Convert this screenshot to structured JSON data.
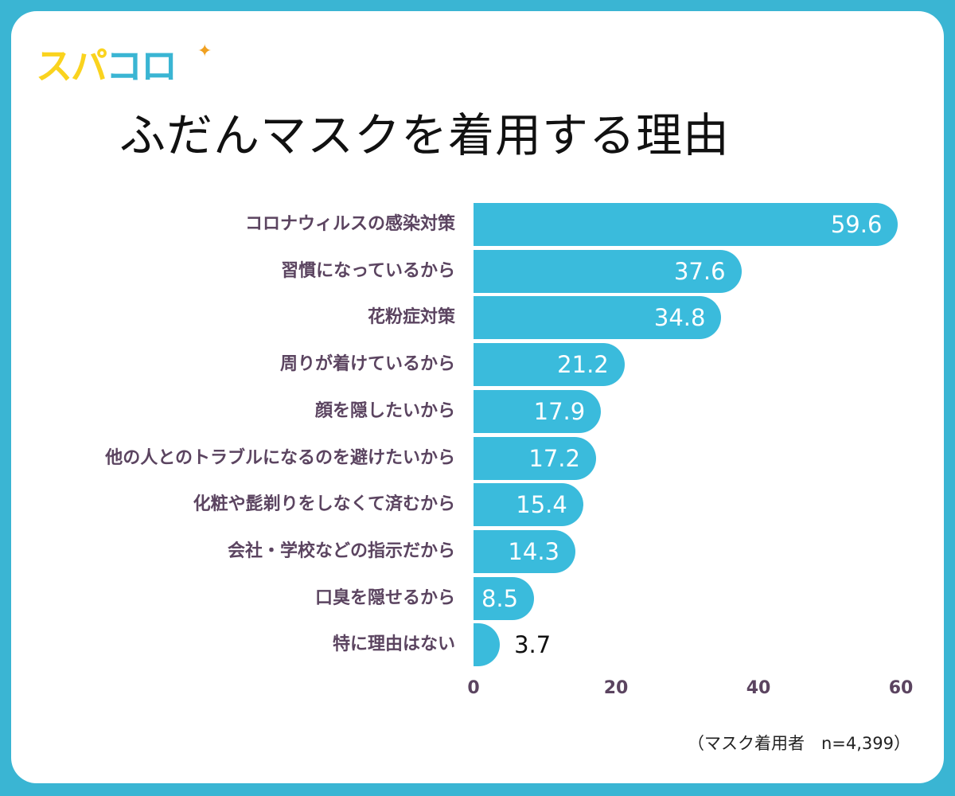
{
  "logo": {
    "text_yellow": "スパ",
    "text_blue": "コロ",
    "sparkle_icon": "four-point-star"
  },
  "colors": {
    "frame": "#3ab5d3",
    "bar": "#3abbdc",
    "label": "#5b4460",
    "logo_yellow": "#fad31e",
    "logo_blue": "#3ab5d3"
  },
  "chart_data": {
    "type": "bar",
    "orientation": "horizontal",
    "title": "ふだんマスクを着用する理由",
    "categories": [
      "コロナウィルスの感染対策",
      "習慣になっているから",
      "花粉症対策",
      "周りが着けているから",
      "顔を隠したいから",
      "他の人とのトラブルになるのを避けたいから",
      "化粧や髭剃りをしなくて済むから",
      "会社・学校などの指示だから",
      "口臭を隠せるから",
      "特に理由はない"
    ],
    "values": [
      59.6,
      37.6,
      34.8,
      21.2,
      17.9,
      17.2,
      15.4,
      14.3,
      8.5,
      3.7
    ],
    "value_labels": [
      "59.6",
      "37.6",
      "34.8",
      "21.2",
      "17.9",
      "17.2",
      "15.4",
      "14.3",
      "8.5",
      "3.7"
    ],
    "xlim": [
      0,
      60
    ],
    "xticks": [
      "0",
      "20",
      "40",
      "60"
    ],
    "grid": false,
    "note": "（マスク着用者　n=4,399）"
  }
}
